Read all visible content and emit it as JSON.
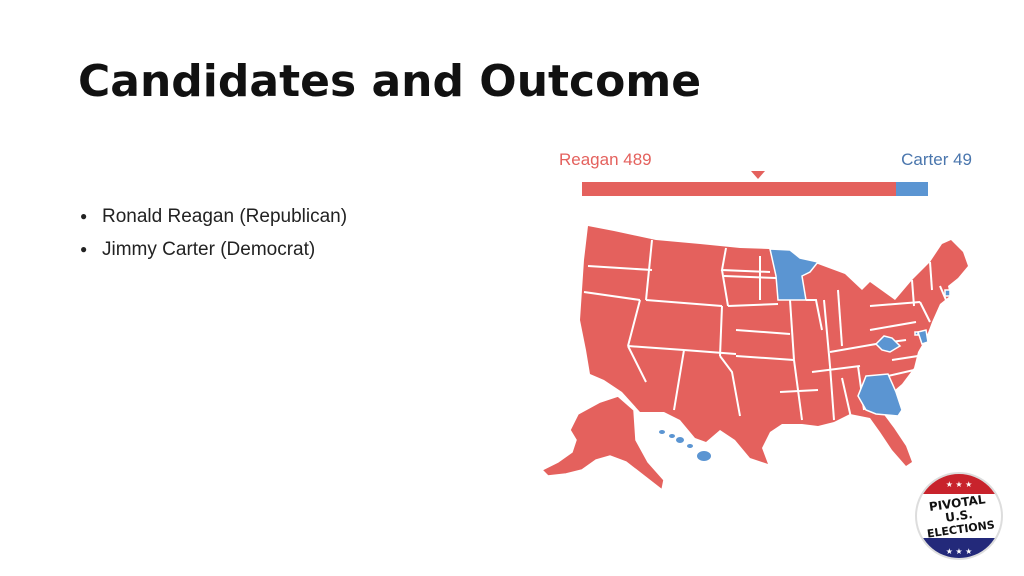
{
  "slide": {
    "title": "Candidates and Outcome"
  },
  "bullets": [
    {
      "text": "Ronald Reagan (Republican)"
    },
    {
      "text": "Jimmy Carter (Democrat)"
    }
  ],
  "bullet_glyph": "●",
  "electoral": {
    "reagan_label": "Reagan 489",
    "carter_label": "Carter 49",
    "reagan_votes": 489,
    "carter_votes": 49,
    "reagan_color": "#e4615d",
    "carter_color": "#5b95d2"
  },
  "map": {
    "carter_states": [
      "Minnesota",
      "Georgia",
      "West Virginia",
      "Maryland",
      "Rhode Island",
      "Hawaii",
      "District of Columbia"
    ],
    "state_color_reagan": "#e4615d",
    "state_color_carter": "#5b95d2"
  },
  "logo": {
    "line1": "PIVOTAL",
    "line2": "U.S.",
    "line3": "ELECTIONS",
    "stars": "★ ★ ★"
  }
}
